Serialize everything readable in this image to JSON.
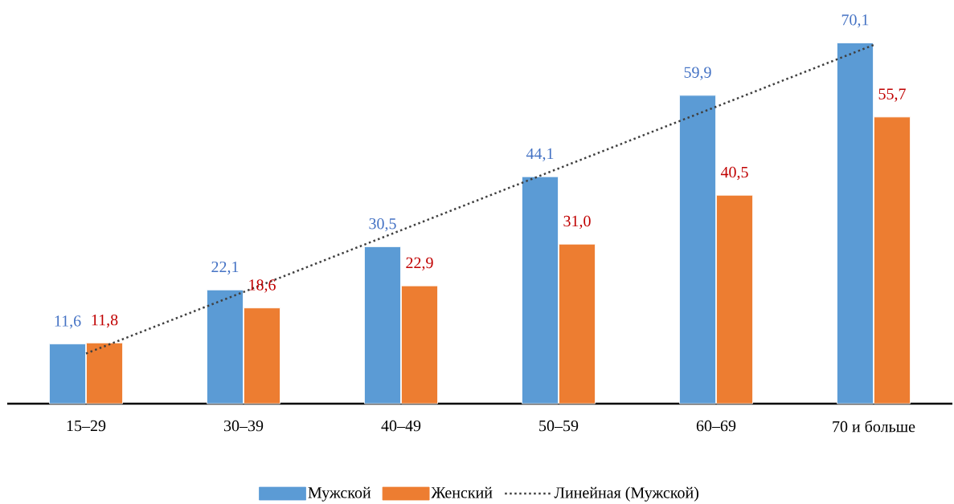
{
  "chart_data": {
    "type": "bar",
    "categories": [
      "15–29",
      "30–39",
      "40–49",
      "50–59",
      "60–69",
      "70 и больше"
    ],
    "series": [
      {
        "name": "Мужской",
        "color": "#5b9bd5",
        "values": [
          11.6,
          22.1,
          30.5,
          44.1,
          59.9,
          70.1
        ],
        "value_labels": [
          "11,6",
          "22,1",
          "30,5",
          "44,1",
          "59,9",
          "70,1"
        ]
      },
      {
        "name": "Женский",
        "color": "#ed7d31",
        "values": [
          11.8,
          18.6,
          22.9,
          31.0,
          40.5,
          55.7
        ],
        "value_labels": [
          "11,8",
          "18,6",
          "22,9",
          "31,0",
          "40,5",
          "55,7"
        ]
      },
      {
        "name": "Линейная (Мужской)",
        "type": "line",
        "color": "#404040",
        "line_style": "dotted",
        "values": [
          9.75,
          21.7,
          33.7,
          45.7,
          57.7,
          69.7
        ]
      }
    ],
    "tick_labels": "x",
    "grid": false,
    "legend": "bottom"
  }
}
